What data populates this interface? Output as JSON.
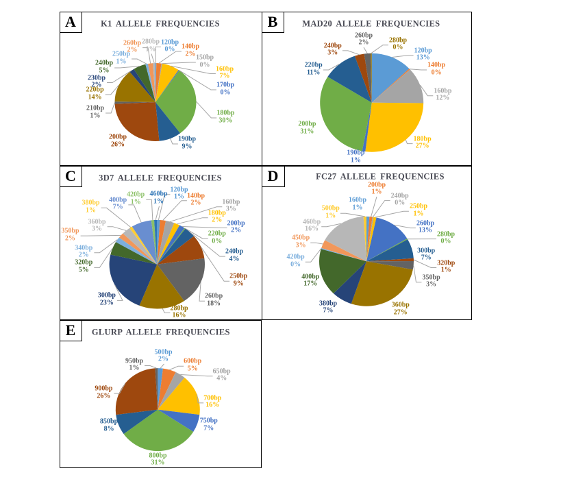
{
  "figure": {
    "description": "Five lettered panels (A-E) each containing a pie chart of allele frequencies",
    "panel_letters": [
      "A",
      "B",
      "C",
      "D",
      "E"
    ]
  },
  "colors": {
    "background": "#ffffff",
    "panel_border": "#000000",
    "panel_letter_text": "#000000",
    "title_text": "#4a4b55",
    "leader_line": "#a6a6a6"
  },
  "chart_data": [
    {
      "panel": "A",
      "type": "pie",
      "title": "K1 ALLELE  FREQUENCIES",
      "legend": "none",
      "label_style": "outside-end with leader lines, colored to match slice",
      "start_angle_deg": 0,
      "direction": "clockwise",
      "categories": [
        "120bp",
        "140bp",
        "150bp",
        "160bp",
        "170bp",
        "180bp",
        "190bp",
        "200bp",
        "210bp",
        "220bp",
        "230bp",
        "240bp",
        "250bp",
        "260bp",
        "280bp"
      ],
      "values": [
        0,
        2,
        0,
        7,
        0,
        30,
        9,
        26,
        1,
        14,
        2,
        5,
        1,
        2,
        1
      ],
      "percent_labels": [
        "0%",
        "2%",
        "0%",
        "7%",
        "0%",
        "30%",
        "9%",
        "26%",
        "1%",
        "14%",
        "2%",
        "5%",
        "1%",
        "2%",
        "1%"
      ],
      "colors": [
        "#5B9BD5",
        "#ED7D31",
        "#A5A5A5",
        "#FFC000",
        "#4472C4",
        "#70AD47",
        "#255E91",
        "#9E480E",
        "#636363",
        "#997300",
        "#264478",
        "#43682B",
        "#7CAFDD",
        "#F1975A",
        "#B7B7B7"
      ]
    },
    {
      "panel": "B",
      "type": "pie",
      "title": "MAD20  ALLELE  FREQUENCIES",
      "legend": "none",
      "label_style": "outside-end with leader lines, colored to match slice",
      "start_angle_deg": 0,
      "direction": "clockwise",
      "categories": [
        "120bp",
        "140bp",
        "160bp",
        "180bp",
        "190bp",
        "200bp",
        "220bp",
        "240bp",
        "260bp",
        "280bp"
      ],
      "values": [
        13,
        0,
        12,
        27,
        1,
        31,
        11,
        3,
        2,
        0
      ],
      "percent_labels": [
        "13%",
        "0%",
        "12%",
        "27%",
        "1%",
        "31%",
        "11%",
        "3%",
        "2%",
        "0%"
      ],
      "colors": [
        "#5B9BD5",
        "#ED7D31",
        "#A5A5A5",
        "#FFC000",
        "#4472C4",
        "#70AD47",
        "#255E91",
        "#9E480E",
        "#636363",
        "#997300"
      ]
    },
    {
      "panel": "C",
      "type": "pie",
      "title": "3D7 ALLELE   FREQUENCIES",
      "legend": "none",
      "label_style": "outside-end with leader lines, colored to match slice",
      "start_angle_deg": 0,
      "direction": "clockwise",
      "categories": [
        "120bp",
        "140bp",
        "160bp",
        "180bp",
        "200bp",
        "220bp",
        "240bp",
        "250bp",
        "260bp",
        "280bp",
        "300bp",
        "320bp",
        "340bp",
        "350bp",
        "360bp",
        "380bp",
        "400bp",
        "420bp",
        "460bp"
      ],
      "values": [
        1,
        2,
        3,
        2,
        2,
        0,
        4,
        9,
        18,
        16,
        23,
        5,
        2,
        2,
        3,
        1,
        7,
        1,
        1
      ],
      "percent_labels": [
        "1%",
        "2%",
        "3%",
        "2%",
        "2%",
        "0%",
        "4%",
        "9%",
        "18%",
        "16%",
        "23%",
        "5%",
        "2%",
        "2%",
        "3%",
        "1%",
        "7%",
        "1%",
        "1%"
      ],
      "colors": [
        "#5B9BD5",
        "#ED7D31",
        "#A5A5A5",
        "#FFC000",
        "#4472C4",
        "#70AD47",
        "#255E91",
        "#9E480E",
        "#636363",
        "#997300",
        "#264478",
        "#43682B",
        "#7CAFDD",
        "#F1975A",
        "#B7B7B7",
        "#FFCD33",
        "#698ED0",
        "#8CC168",
        "#2E75B6"
      ]
    },
    {
      "panel": "D",
      "type": "pie",
      "title": "FC27 ALLELE  FREQUENCIES",
      "legend": "none",
      "label_style": "outside-end with leader lines, colored to match slice",
      "start_angle_deg": 0,
      "direction": "clockwise",
      "categories": [
        "160bp",
        "200bp",
        "240bp",
        "250bp",
        "260bp",
        "280bp",
        "300bp",
        "320bp",
        "350bp",
        "360bp",
        "380bp",
        "400bp",
        "420bp",
        "450bp",
        "460bp",
        "500bp"
      ],
      "values": [
        1,
        1,
        0,
        1,
        13,
        0,
        7,
        1,
        3,
        27,
        7,
        17,
        0,
        3,
        16,
        1
      ],
      "percent_labels": [
        "1%",
        "1%",
        "0%",
        "1%",
        "13%",
        "0%",
        "7%",
        "1%",
        "3%",
        "27%",
        "7%",
        "17%",
        "0%",
        "3%",
        "16%",
        "1%"
      ],
      "colors": [
        "#5B9BD5",
        "#ED7D31",
        "#A5A5A5",
        "#FFC000",
        "#4472C4",
        "#70AD47",
        "#255E91",
        "#9E480E",
        "#636363",
        "#997300",
        "#264478",
        "#43682B",
        "#7CAFDD",
        "#F1975A",
        "#B7B7B7",
        "#FFCD33"
      ]
    },
    {
      "panel": "E",
      "type": "pie",
      "title": "GLURP  ALLELE  FREQUENCIES",
      "legend": "none",
      "label_style": "outside-end with leader lines, colored to match slice",
      "start_angle_deg": 0,
      "direction": "clockwise",
      "categories": [
        "500bp",
        "600bp",
        "650bp",
        "700bp",
        "750bp",
        "800bp",
        "850bp",
        "900bp",
        "950bp"
      ],
      "values": [
        2,
        5,
        4,
        16,
        7,
        31,
        8,
        26,
        1
      ],
      "percent_labels": [
        "2%",
        "5%",
        "4%",
        "16%",
        "7%",
        "31%",
        "8%",
        "26%",
        "1%"
      ],
      "colors": [
        "#5B9BD5",
        "#ED7D31",
        "#A5A5A5",
        "#FFC000",
        "#4472C4",
        "#70AD47",
        "#255E91",
        "#9E480E",
        "#636363"
      ]
    }
  ]
}
